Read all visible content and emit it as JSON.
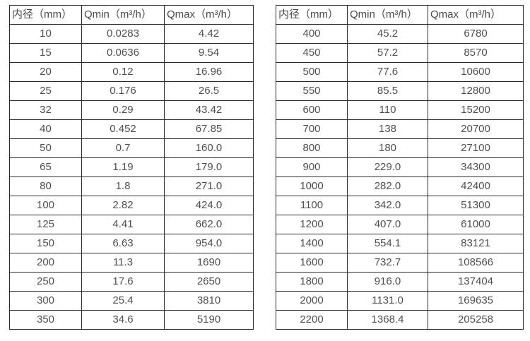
{
  "colors": {
    "background": "#ffffff",
    "border": "#2b2b2b",
    "text": "#4f4f4f"
  },
  "tables": [
    {
      "name": "flow-table-small-diameters",
      "columns": [
        "内径（mm）",
        "Qmin（m³/h）",
        "Qmax（m³/h）"
      ],
      "rows": [
        [
          "10",
          "0.0283",
          "4.42"
        ],
        [
          "15",
          "0.0636",
          "9.54"
        ],
        [
          "20",
          "0.12",
          "16.96"
        ],
        [
          "25",
          "0.176",
          "26.5"
        ],
        [
          "32",
          "0.29",
          "43.42"
        ],
        [
          "40",
          "0.452",
          "67.85"
        ],
        [
          "50",
          "0.7",
          "160.0"
        ],
        [
          "65",
          "1.19",
          "179.0"
        ],
        [
          "80",
          "1.8",
          "271.0"
        ],
        [
          "100",
          "2.82",
          "424.0"
        ],
        [
          "125",
          "4.41",
          "662.0"
        ],
        [
          "150",
          "6.63",
          "954.0"
        ],
        [
          "200",
          "11.3",
          "1690"
        ],
        [
          "250",
          "17.6",
          "2650"
        ],
        [
          "300",
          "25.4",
          "3810"
        ],
        [
          "350",
          "34.6",
          "5190"
        ]
      ]
    },
    {
      "name": "flow-table-large-diameters",
      "columns": [
        "内径（mm）",
        "Qmin（m³/h）",
        "Qmax（m³/h）"
      ],
      "rows": [
        [
          "400",
          "45.2",
          "6780"
        ],
        [
          "450",
          "57.2",
          "8570"
        ],
        [
          "500",
          "77.6",
          "10600"
        ],
        [
          "550",
          "85.5",
          "12800"
        ],
        [
          "600",
          "110",
          "15200"
        ],
        [
          "700",
          "138",
          "20700"
        ],
        [
          "800",
          "180",
          "27100"
        ],
        [
          "900",
          "229.0",
          "34300"
        ],
        [
          "1000",
          "282.0",
          "42400"
        ],
        [
          "1100",
          "342.0",
          "51300"
        ],
        [
          "1200",
          "407.0",
          "61000"
        ],
        [
          "1400",
          "554.1",
          "83121"
        ],
        [
          "1600",
          "732.7",
          "108566"
        ],
        [
          "1800",
          "916.0",
          "137404"
        ],
        [
          "2000",
          "1131.0",
          "169635"
        ],
        [
          "2200",
          "1368.4",
          "205258"
        ]
      ]
    }
  ]
}
